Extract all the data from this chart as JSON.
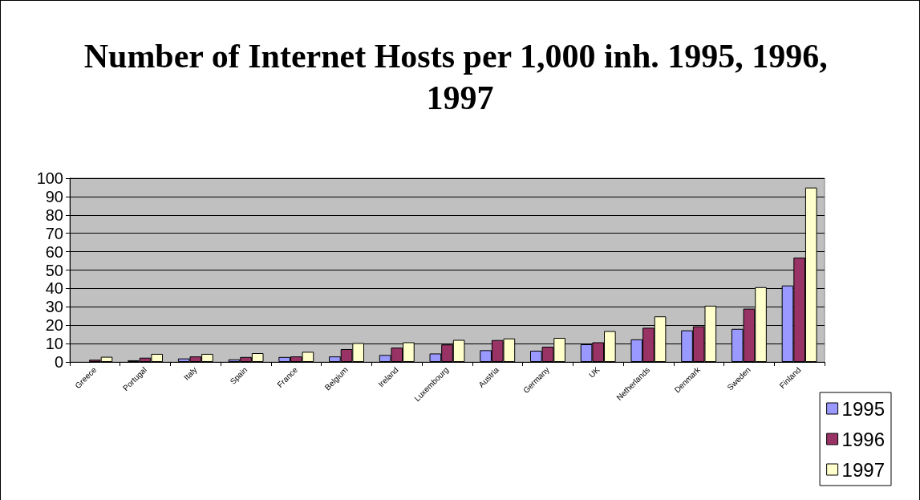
{
  "chart_data": {
    "type": "bar",
    "title": "Number of Internet Hosts per 1,000 inh. 1995, 1996, 1997",
    "categories": [
      "Greece",
      "Portugal",
      "Italy",
      "Spain",
      "France",
      "Belgium",
      "Ireland",
      "Luxembourg",
      "Austria",
      "Germany",
      "UK",
      "Netherlands",
      "Denmark",
      "Sweden",
      "Finland"
    ],
    "series": [
      {
        "name": "1995",
        "color": "#9999ff",
        "values": [
          null,
          0.9,
          1.9,
          1.4,
          2.7,
          3.0,
          3.8,
          4.6,
          6.4,
          6.1,
          9.6,
          12.3,
          17.2,
          18.0,
          41.6
        ]
      },
      {
        "name": "1996",
        "color": "#993366",
        "values": [
          1.2,
          2.3,
          3.0,
          2.7,
          3.0,
          7.0,
          7.8,
          9.5,
          11.9,
          8.3,
          10.7,
          18.6,
          19.4,
          29.0,
          56.8
        ]
      },
      {
        "name": "1997",
        "color": "#ffffcc",
        "values": [
          2.8,
          4.4,
          4.4,
          4.8,
          5.5,
          10.3,
          10.7,
          12.0,
          12.8,
          13.1,
          16.8,
          24.8,
          30.6,
          40.7,
          94.9
        ]
      }
    ],
    "ylim": [
      0,
      100
    ],
    "yticks": [
      0,
      10,
      20,
      30,
      40,
      50,
      60,
      70,
      80,
      90,
      100
    ],
    "grid": "y",
    "legend": "bottom right"
  }
}
